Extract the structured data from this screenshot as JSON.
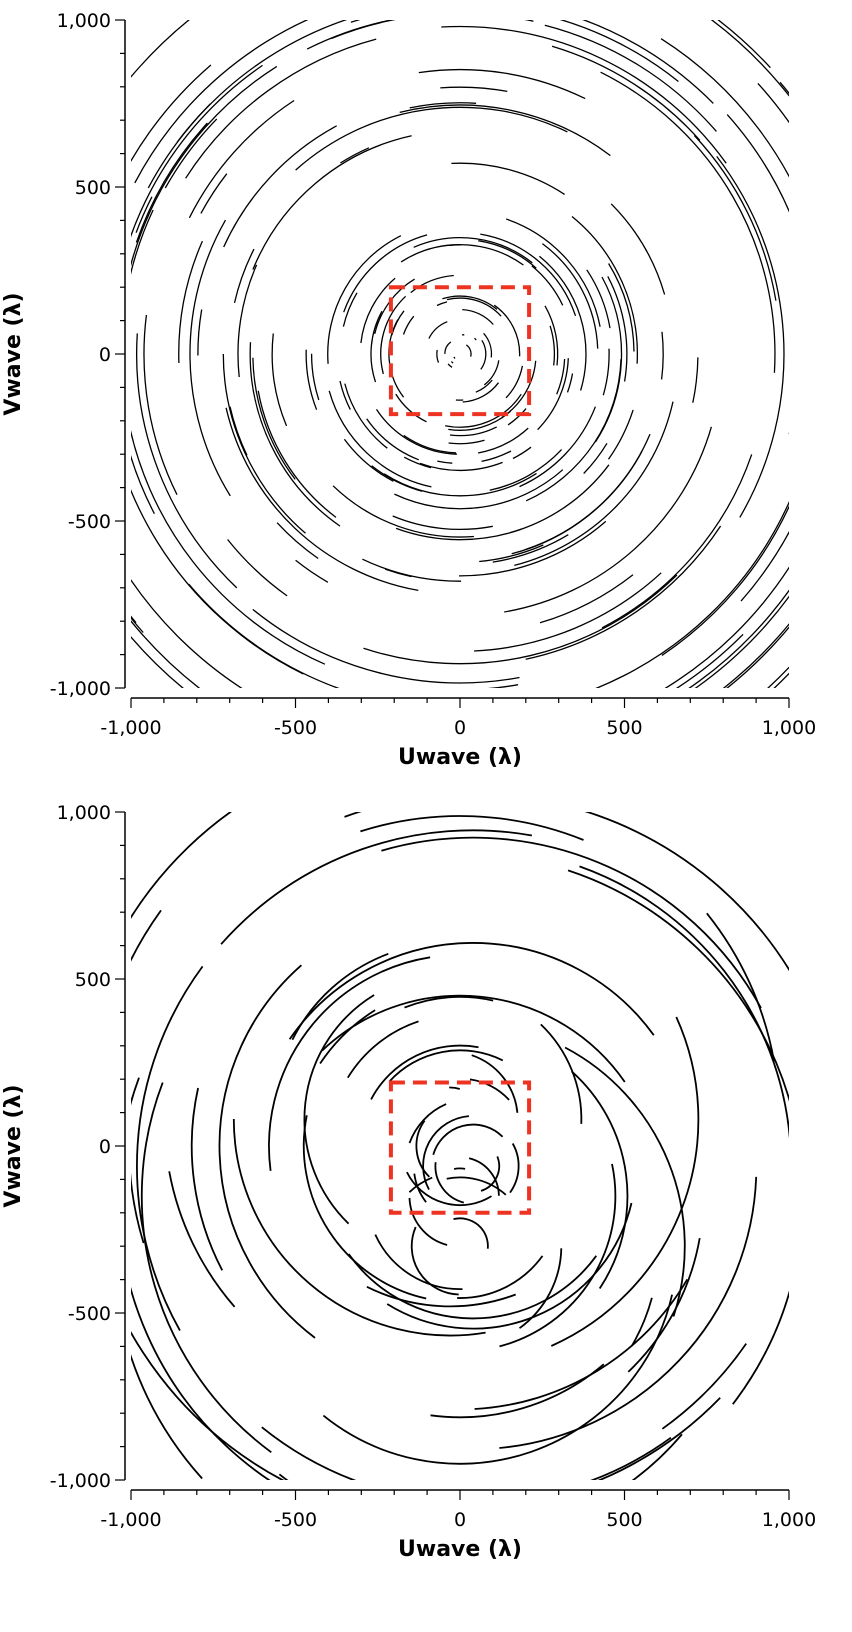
{
  "chart_data": [
    {
      "type": "scatter",
      "subtype": "uv-coverage",
      "title": "",
      "xlabel": "Uwave (λ)",
      "ylabel": "Vwave (λ)",
      "xlim": [
        -1000,
        1000
      ],
      "ylim": [
        -1000,
        1000
      ],
      "xticks": [
        "-1,000",
        "-500",
        "0",
        "500",
        "1,000"
      ],
      "yticks": [
        "1,000",
        "500",
        "0",
        "-500",
        "-1,000"
      ],
      "x_tick_values": [
        -1000,
        -500,
        0,
        500,
        1000
      ],
      "y_tick_values": [
        1000,
        500,
        0,
        -500,
        -1000
      ],
      "grid": false,
      "trace_color": "#000000",
      "highlight": {
        "x": [
          -210,
          210
        ],
        "y": [
          -180,
          200
        ],
        "color": "#ee3322",
        "style": "dashed"
      },
      "tracks": {
        "centers": [
          [
            0,
            0
          ]
        ],
        "r_min": 20,
        "r_max": 1420,
        "count": 200,
        "arc_deg": [
          6,
          70
        ],
        "stroke": 1.3
      }
    },
    {
      "type": "scatter",
      "subtype": "uv-coverage",
      "title": "",
      "xlabel": "Uwave (λ)",
      "ylabel": "Vwave (λ)",
      "xlim": [
        -1000,
        1000
      ],
      "ylim": [
        -1000,
        1000
      ],
      "xticks": [
        "-1,000",
        "-500",
        "0",
        "500",
        "1,000"
      ],
      "yticks": [
        "1,000",
        "500",
        "0",
        "-500",
        "-1,000"
      ],
      "x_tick_values": [
        -1000,
        -500,
        0,
        500,
        1000
      ],
      "y_tick_values": [
        1000,
        500,
        0,
        -500,
        -1000
      ],
      "grid": false,
      "trace_color": "#000000",
      "highlight": {
        "x": [
          -210,
          210
        ],
        "y": [
          -200,
          190
        ],
        "color": "#ee3322",
        "style": "dashed"
      },
      "tracks": {
        "centers": [
          [
            0,
            0
          ],
          [
            0,
            -300
          ],
          [
            0,
            -150
          ],
          [
            -30,
            80
          ],
          [
            40,
            -60
          ]
        ],
        "r_min": 60,
        "r_max": 1150,
        "count": 70,
        "arc_deg": [
          15,
          120
        ],
        "stroke": 1.8
      }
    }
  ]
}
